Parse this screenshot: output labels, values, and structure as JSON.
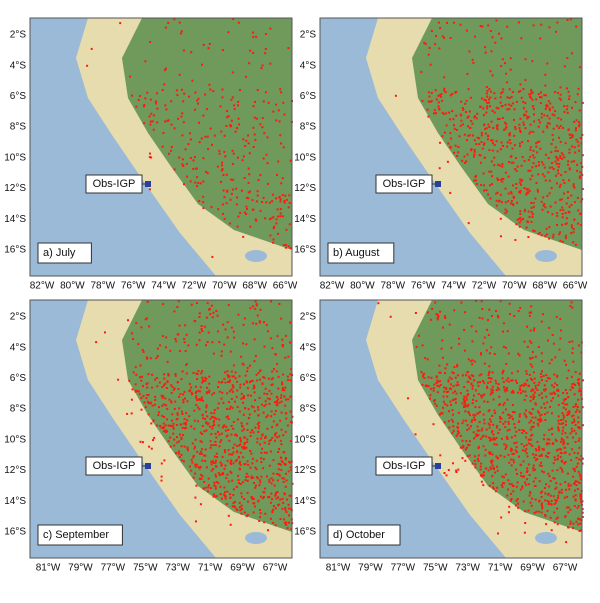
{
  "panels": [
    {
      "label": "a) July",
      "station": "Obs-IGP",
      "lat_ticks": [
        "2°S",
        "4°S",
        "6°S",
        "8°S",
        "10°S",
        "12°S",
        "14°S",
        "16°S"
      ],
      "lon_ticks": [
        "82°W",
        "80°W",
        "78°W",
        "76°W",
        "74°W",
        "72°W",
        "70°W",
        "68°W",
        "66°W"
      ]
    },
    {
      "label": "b) August",
      "station": "Obs-IGP",
      "lat_ticks": [
        "2°S",
        "4°S",
        "6°S",
        "8°S",
        "10°S",
        "12°S",
        "14°S",
        "16°S"
      ],
      "lon_ticks": [
        "82°W",
        "80°W",
        "78°W",
        "76°W",
        "74°W",
        "72°W",
        "70°W",
        "68°W",
        "66°W"
      ]
    },
    {
      "label": "c) September",
      "station": "Obs-IGP",
      "lat_ticks": [
        "2°S",
        "4°S",
        "6°S",
        "8°S",
        "10°S",
        "12°S",
        "14°S",
        "16°S"
      ],
      "lon_ticks": [
        "81°W",
        "79°W",
        "77°W",
        "75°W",
        "73°W",
        "71°W",
        "69°W",
        "67°W"
      ]
    },
    {
      "label": "d) October",
      "station": "Obs-IGP",
      "lat_ticks": [
        "2°S",
        "4°S",
        "6°S",
        "8°S",
        "10°S",
        "12°S",
        "14°S",
        "16°S"
      ],
      "lon_ticks": [
        "81°W",
        "79°W",
        "77°W",
        "75°W",
        "73°W",
        "71°W",
        "69°W",
        "67°W"
      ]
    }
  ]
}
